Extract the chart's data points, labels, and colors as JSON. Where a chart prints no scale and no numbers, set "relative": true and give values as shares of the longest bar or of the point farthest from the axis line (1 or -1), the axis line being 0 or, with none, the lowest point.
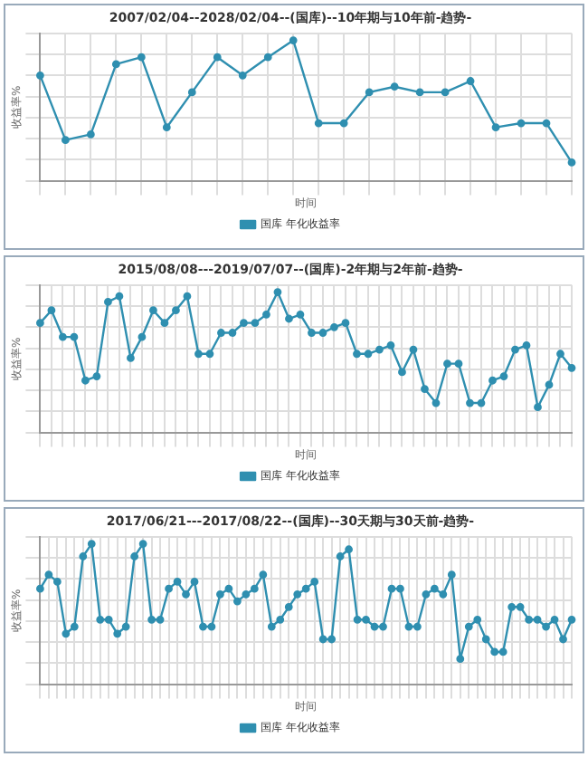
{
  "chart_data": [
    {
      "type": "line",
      "title": "2007/02/04--2028/02/04--(国库)--10年期与10年前-趋势-",
      "xlabel": "时间",
      "ylabel": "收益率%",
      "relative": true,
      "grid": true,
      "marker": "circle",
      "legend": "bottom",
      "categories": [
        null,
        null,
        null,
        null,
        null,
        null,
        null,
        null,
        null,
        null,
        null,
        null,
        null,
        null,
        null,
        null,
        null,
        null,
        null,
        null,
        null,
        null
      ],
      "series": [
        {
          "name": "国库 年化收益率",
          "color": "#2f8fb0",
          "values": [
            0.75,
            0.29,
            0.33,
            0.83,
            0.88,
            0.38,
            0.63,
            0.88,
            0.75,
            0.88,
            1,
            0.41,
            0.41,
            0.63,
            0.67,
            0.63,
            0.63,
            0.71,
            0.38,
            0.41,
            0.41,
            0.13
          ]
        }
      ]
    },
    {
      "type": "line",
      "title": "2015/08/08---2019/07/07--(国库)-2年期与2年前-趋势-",
      "xlabel": "时间",
      "ylabel": "收益率%",
      "relative": true,
      "grid": true,
      "marker": "circle",
      "legend": "bottom",
      "categories": [
        null,
        null,
        null,
        null,
        null,
        null,
        null,
        null,
        null,
        null,
        null,
        null,
        null,
        null,
        null,
        null,
        null,
        null,
        null,
        null,
        null,
        null,
        null,
        null,
        null,
        null,
        null,
        null,
        null,
        null,
        null,
        null,
        null,
        null,
        null,
        null,
        null,
        null,
        null,
        null,
        null,
        null,
        null,
        null,
        null,
        null,
        null,
        null
      ],
      "series": [
        {
          "name": "国库 年化收益率",
          "color": "#2f8fb0",
          "values": [
            0.78,
            0.87,
            0.68,
            0.68,
            0.37,
            0.4,
            0.93,
            0.97,
            0.53,
            0.68,
            0.87,
            0.78,
            0.87,
            0.97,
            0.56,
            0.56,
            0.71,
            0.71,
            0.78,
            0.78,
            0.84,
            1,
            0.81,
            0.84,
            0.71,
            0.71,
            0.75,
            0.78,
            0.56,
            0.56,
            0.59,
            0.62,
            0.43,
            0.59,
            0.31,
            0.21,
            0.49,
            0.49,
            0.21,
            0.21,
            0.37,
            0.4,
            0.59,
            0.62,
            0.18,
            0.34,
            0.56,
            0.46
          ]
        }
      ]
    },
    {
      "type": "line",
      "title": "2017/06/21---2017/08/22--(国库)--30天期与30天前-趋势-",
      "xlabel": "时间",
      "ylabel": "收益率%",
      "relative": true,
      "grid": true,
      "marker": "circle",
      "legend": "bottom",
      "categories": [
        null,
        null,
        null,
        null,
        null,
        null,
        null,
        null,
        null,
        null,
        null,
        null,
        null,
        null,
        null,
        null,
        null,
        null,
        null,
        null,
        null,
        null,
        null,
        null,
        null,
        null,
        null,
        null,
        null,
        null,
        null,
        null,
        null,
        null,
        null,
        null,
        null,
        null,
        null,
        null,
        null,
        null,
        null,
        null,
        null,
        null,
        null,
        null,
        null,
        null,
        null,
        null,
        null,
        null,
        null,
        null,
        null,
        null,
        null,
        null,
        null,
        null,
        null
      ],
      "series": [
        {
          "name": "国库 年化收益率",
          "color": "#2f8fb0",
          "values": [
            0.68,
            0.78,
            0.73,
            0.36,
            0.41,
            0.91,
            1,
            0.46,
            0.46,
            0.36,
            0.41,
            0.91,
            1,
            0.46,
            0.46,
            0.68,
            0.73,
            0.64,
            0.73,
            0.41,
            0.41,
            0.64,
            0.68,
            0.59,
            0.64,
            0.68,
            0.78,
            0.41,
            0.46,
            0.55,
            0.64,
            0.68,
            0.73,
            0.32,
            0.32,
            0.91,
            0.96,
            0.46,
            0.46,
            0.41,
            0.41,
            0.68,
            0.68,
            0.41,
            0.41,
            0.64,
            0.68,
            0.64,
            0.78,
            0.18,
            0.41,
            0.46,
            0.32,
            0.23,
            0.23,
            0.55,
            0.55,
            0.46,
            0.46,
            0.41,
            0.46,
            0.32,
            0.46
          ]
        }
      ]
    }
  ]
}
